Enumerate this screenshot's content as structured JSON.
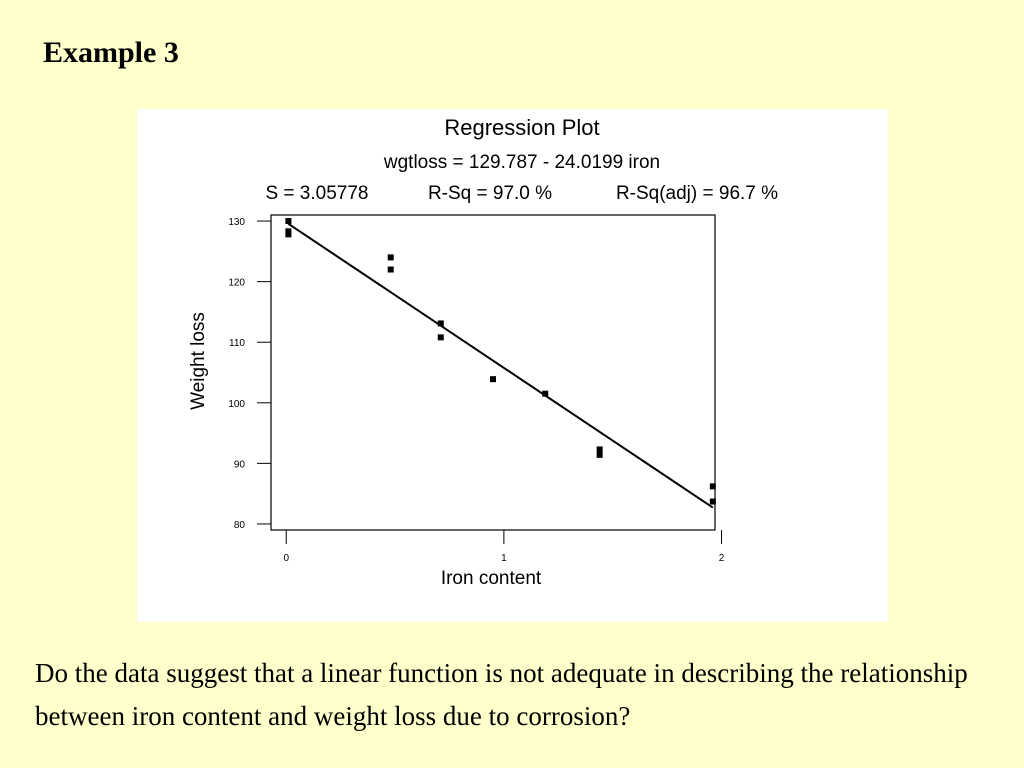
{
  "slide": {
    "title": "Example 3",
    "question": "Do the data suggest that a linear function is not adequate in describing the relationship between iron content and weight loss due to corrosion?"
  },
  "chart_data": {
    "type": "scatter",
    "title": "Regression Plot",
    "subtitle_equation": "wgtloss = 129.787 - 24.0199 iron",
    "subtitle_stats": {
      "s": "S = 3.05778",
      "rsq": "R-Sq = 97.0 %",
      "rsq_adj": "R-Sq(adj) = 96.7 %"
    },
    "xlabel": "Iron content",
    "ylabel": "Weight loss",
    "xlim": [
      -0.07,
      1.97
    ],
    "ylim": [
      79,
      131
    ],
    "x_ticks": [
      0,
      1,
      2
    ],
    "y_ticks": [
      80,
      90,
      100,
      110,
      120,
      130
    ],
    "grid": false,
    "points": [
      {
        "x": 0.01,
        "y": 130.0
      },
      {
        "x": 0.01,
        "y": 128.3
      },
      {
        "x": 0.01,
        "y": 127.8
      },
      {
        "x": 0.48,
        "y": 124.0
      },
      {
        "x": 0.48,
        "y": 122.0
      },
      {
        "x": 0.71,
        "y": 113.1
      },
      {
        "x": 0.71,
        "y": 110.8
      },
      {
        "x": 0.95,
        "y": 103.9
      },
      {
        "x": 1.19,
        "y": 101.5
      },
      {
        "x": 1.44,
        "y": 92.3
      },
      {
        "x": 1.44,
        "y": 91.4
      },
      {
        "x": 1.96,
        "y": 86.2
      },
      {
        "x": 1.96,
        "y": 83.7
      }
    ],
    "fit_line": {
      "intercept": 129.787,
      "slope": -24.0199,
      "x_range": [
        0.01,
        1.96
      ]
    },
    "colors": {
      "marks": "#000000",
      "panel": "#ffffff",
      "background": "#ffffcc"
    }
  }
}
